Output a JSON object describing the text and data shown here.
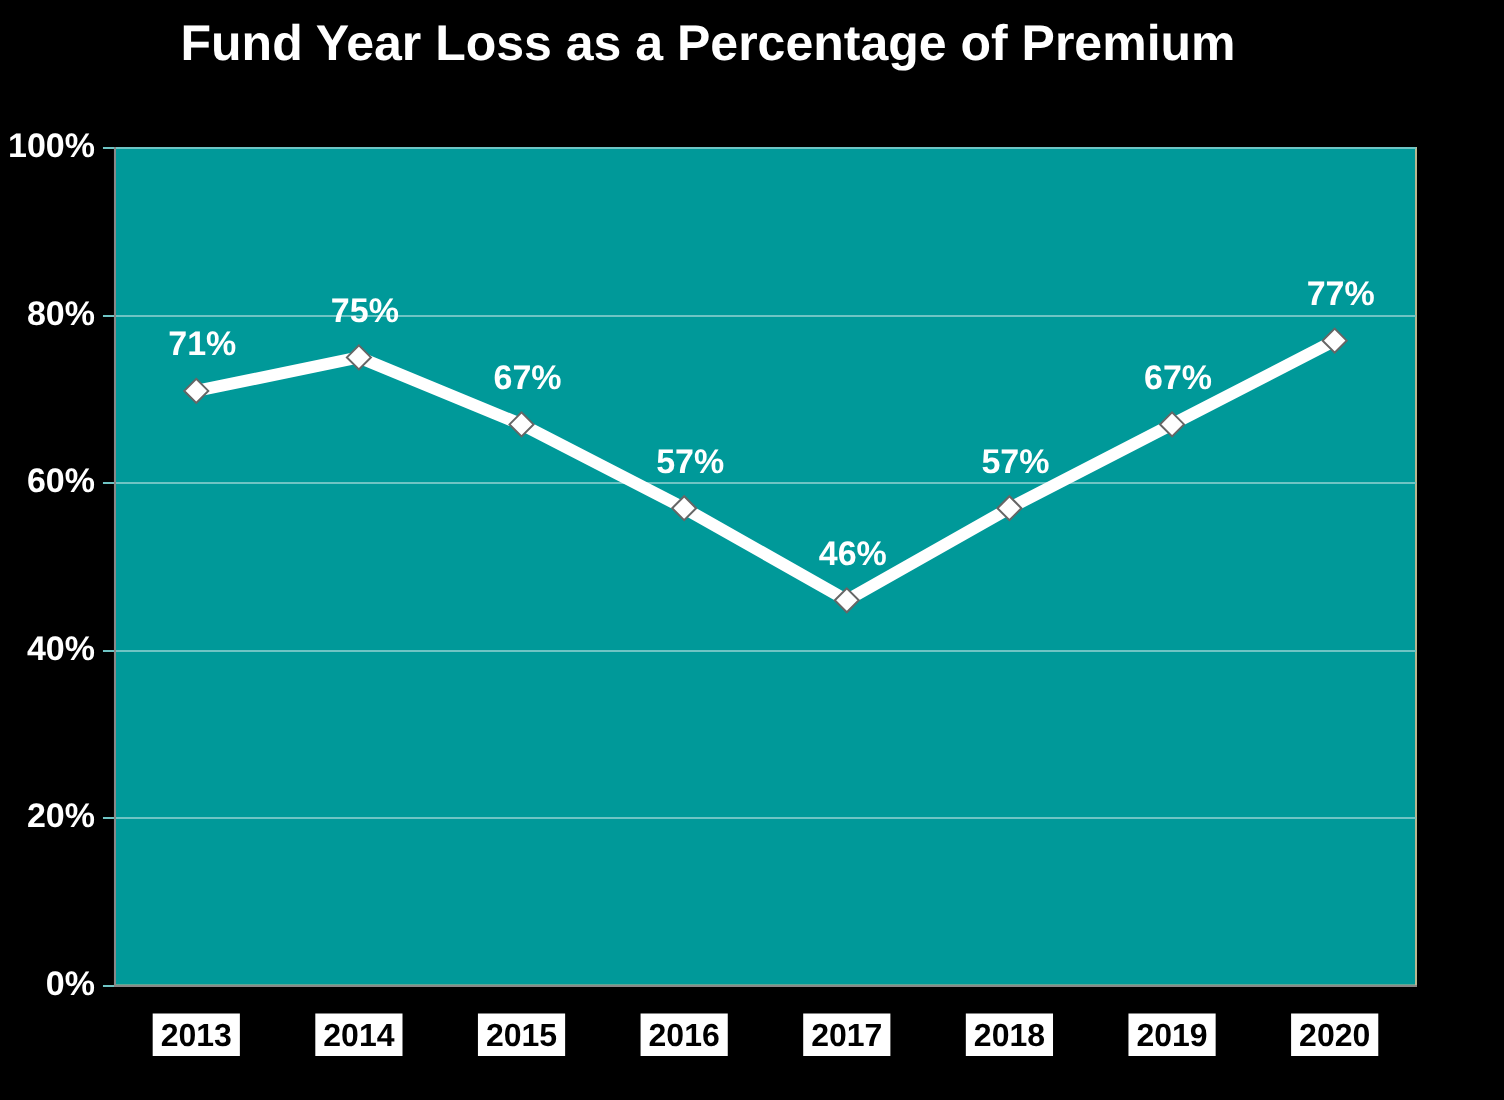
{
  "chart_data": {
    "type": "line",
    "title": "Fund Year Loss as a Percentage of Premium",
    "categories": [
      "2013",
      "2014",
      "2015",
      "2016",
      "2017",
      "2018",
      "2019",
      "2020"
    ],
    "series": [
      {
        "color": "#ffffff",
        "values": [
          71,
          75,
          67,
          57,
          46,
          57,
          67,
          77
        ],
        "value_labels": [
          "71%",
          "75%",
          "67%",
          "57%",
          "46%",
          "57%",
          "67%",
          "77%"
        ]
      }
    ],
    "ylim": [
      0,
      100
    ],
    "yticks": [
      {
        "value": 0,
        "label": "0%"
      },
      {
        "value": 20,
        "label": "20%"
      },
      {
        "value": 40,
        "label": "40%"
      },
      {
        "value": 60,
        "label": "60%"
      },
      {
        "value": 80,
        "label": "80%"
      },
      {
        "value": 100,
        "label": "100%"
      }
    ],
    "grid": "y",
    "marker": "diamond",
    "line_style": "solid",
    "legend": false
  }
}
